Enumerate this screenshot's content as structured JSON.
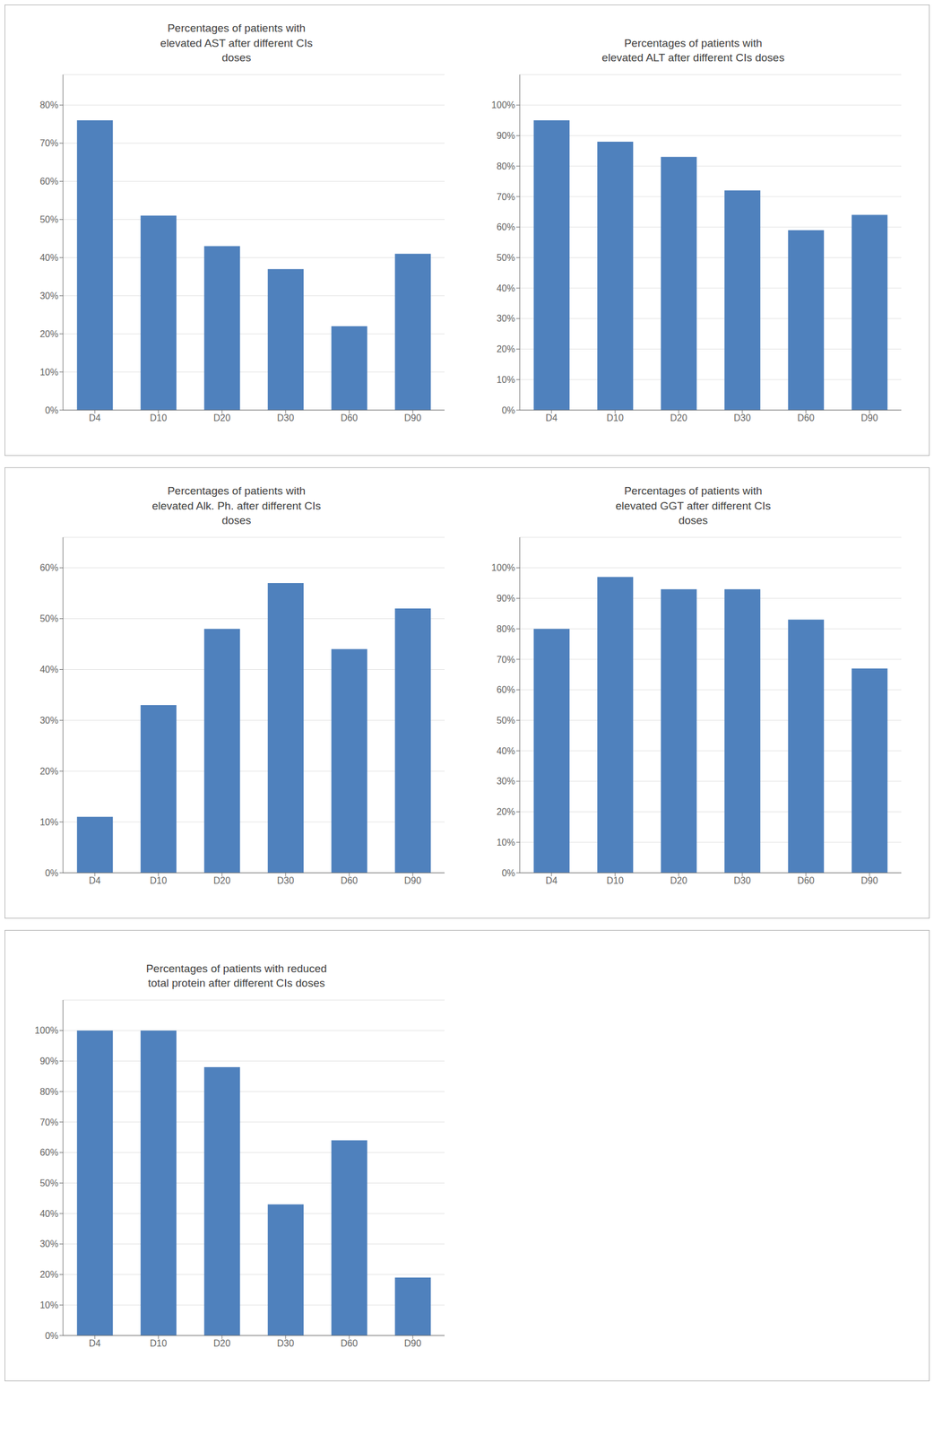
{
  "chart_data": [
    {
      "type": "bar",
      "title": "Percentages of patients with\nelevated AST after different CIs\ndoses",
      "categories": [
        "D4",
        "D10",
        "D20",
        "D30",
        "D60",
        "D90"
      ],
      "values": [
        0.76,
        0.51,
        0.43,
        0.37,
        0.22,
        0.41
      ],
      "color": "#4f81bd",
      "ylim": [
        0,
        0.88
      ],
      "yticks": [
        {
          "value": 0.0,
          "label": "0%"
        },
        {
          "value": 0.1,
          "label": "10%"
        },
        {
          "value": 0.2,
          "label": "20%"
        },
        {
          "value": 0.3,
          "label": "30%"
        },
        {
          "value": 0.4,
          "label": "40%"
        },
        {
          "value": 0.5,
          "label": "50%"
        },
        {
          "value": 0.6,
          "label": "60%"
        },
        {
          "value": 0.7,
          "label": "70%"
        },
        {
          "value": 0.8,
          "label": "80%"
        }
      ],
      "grid": true
    },
    {
      "type": "bar",
      "title": "Percentages of patients with\nelevated ALT after different CIs doses",
      "categories": [
        "D4",
        "D10",
        "D20",
        "D30",
        "D60",
        "D90"
      ],
      "values": [
        0.95,
        0.88,
        0.83,
        0.72,
        0.59,
        0.64
      ],
      "color": "#4f81bd",
      "ylim": [
        0,
        1.1
      ],
      "yticks": [
        {
          "value": 0.0,
          "label": "0%"
        },
        {
          "value": 0.1,
          "label": "10%"
        },
        {
          "value": 0.2,
          "label": "20%"
        },
        {
          "value": 0.3,
          "label": "30%"
        },
        {
          "value": 0.4,
          "label": "40%"
        },
        {
          "value": 0.5,
          "label": "50%"
        },
        {
          "value": 0.6,
          "label": "60%"
        },
        {
          "value": 0.7,
          "label": "70%"
        },
        {
          "value": 0.8,
          "label": "80%"
        },
        {
          "value": 0.9,
          "label": "90%"
        },
        {
          "value": 1.0,
          "label": "100%"
        }
      ],
      "grid": true
    },
    {
      "type": "bar",
      "title": "Percentages of patients with\nelevated Alk. Ph. after different CIs\ndoses",
      "categories": [
        "D4",
        "D10",
        "D20",
        "D30",
        "D60",
        "D90"
      ],
      "values": [
        0.11,
        0.33,
        0.48,
        0.57,
        0.44,
        0.52
      ],
      "color": "#4f81bd",
      "ylim": [
        0,
        0.66
      ],
      "yticks": [
        {
          "value": 0.0,
          "label": "0%"
        },
        {
          "value": 0.1,
          "label": "10%"
        },
        {
          "value": 0.2,
          "label": "20%"
        },
        {
          "value": 0.3,
          "label": "30%"
        },
        {
          "value": 0.4,
          "label": "40%"
        },
        {
          "value": 0.5,
          "label": "50%"
        },
        {
          "value": 0.6,
          "label": "60%"
        }
      ],
      "grid": true
    },
    {
      "type": "bar",
      "title": "Percentages of patients with\nelevated GGT after different CIs\ndoses",
      "categories": [
        "D4",
        "D10",
        "D20",
        "D30",
        "D60",
        "D90"
      ],
      "values": [
        0.8,
        0.97,
        0.93,
        0.93,
        0.83,
        0.67
      ],
      "color": "#4f81bd",
      "ylim": [
        0,
        1.1
      ],
      "yticks": [
        {
          "value": 0.0,
          "label": "0%"
        },
        {
          "value": 0.1,
          "label": "10%"
        },
        {
          "value": 0.2,
          "label": "20%"
        },
        {
          "value": 0.3,
          "label": "30%"
        },
        {
          "value": 0.4,
          "label": "40%"
        },
        {
          "value": 0.5,
          "label": "50%"
        },
        {
          "value": 0.6,
          "label": "60%"
        },
        {
          "value": 0.7,
          "label": "70%"
        },
        {
          "value": 0.8,
          "label": "80%"
        },
        {
          "value": 0.9,
          "label": "90%"
        },
        {
          "value": 1.0,
          "label": "100%"
        }
      ],
      "grid": true
    },
    {
      "type": "bar",
      "title": "Percentages of patients with reduced\ntotal protein after different CIs doses",
      "categories": [
        "D4",
        "D10",
        "D20",
        "D30",
        "D60",
        "D90"
      ],
      "values": [
        1.0,
        1.0,
        0.88,
        0.43,
        0.64,
        0.19
      ],
      "color": "#4f81bd",
      "ylim": [
        0,
        1.1
      ],
      "yticks": [
        {
          "value": 0.0,
          "label": "0%"
        },
        {
          "value": 0.1,
          "label": "10%"
        },
        {
          "value": 0.2,
          "label": "20%"
        },
        {
          "value": 0.3,
          "label": "30%"
        },
        {
          "value": 0.4,
          "label": "40%"
        },
        {
          "value": 0.5,
          "label": "50%"
        },
        {
          "value": 0.6,
          "label": "60%"
        },
        {
          "value": 0.7,
          "label": "70%"
        },
        {
          "value": 0.8,
          "label": "80%"
        },
        {
          "value": 0.9,
          "label": "90%"
        },
        {
          "value": 1.0,
          "label": "100%"
        }
      ],
      "grid": true
    }
  ]
}
